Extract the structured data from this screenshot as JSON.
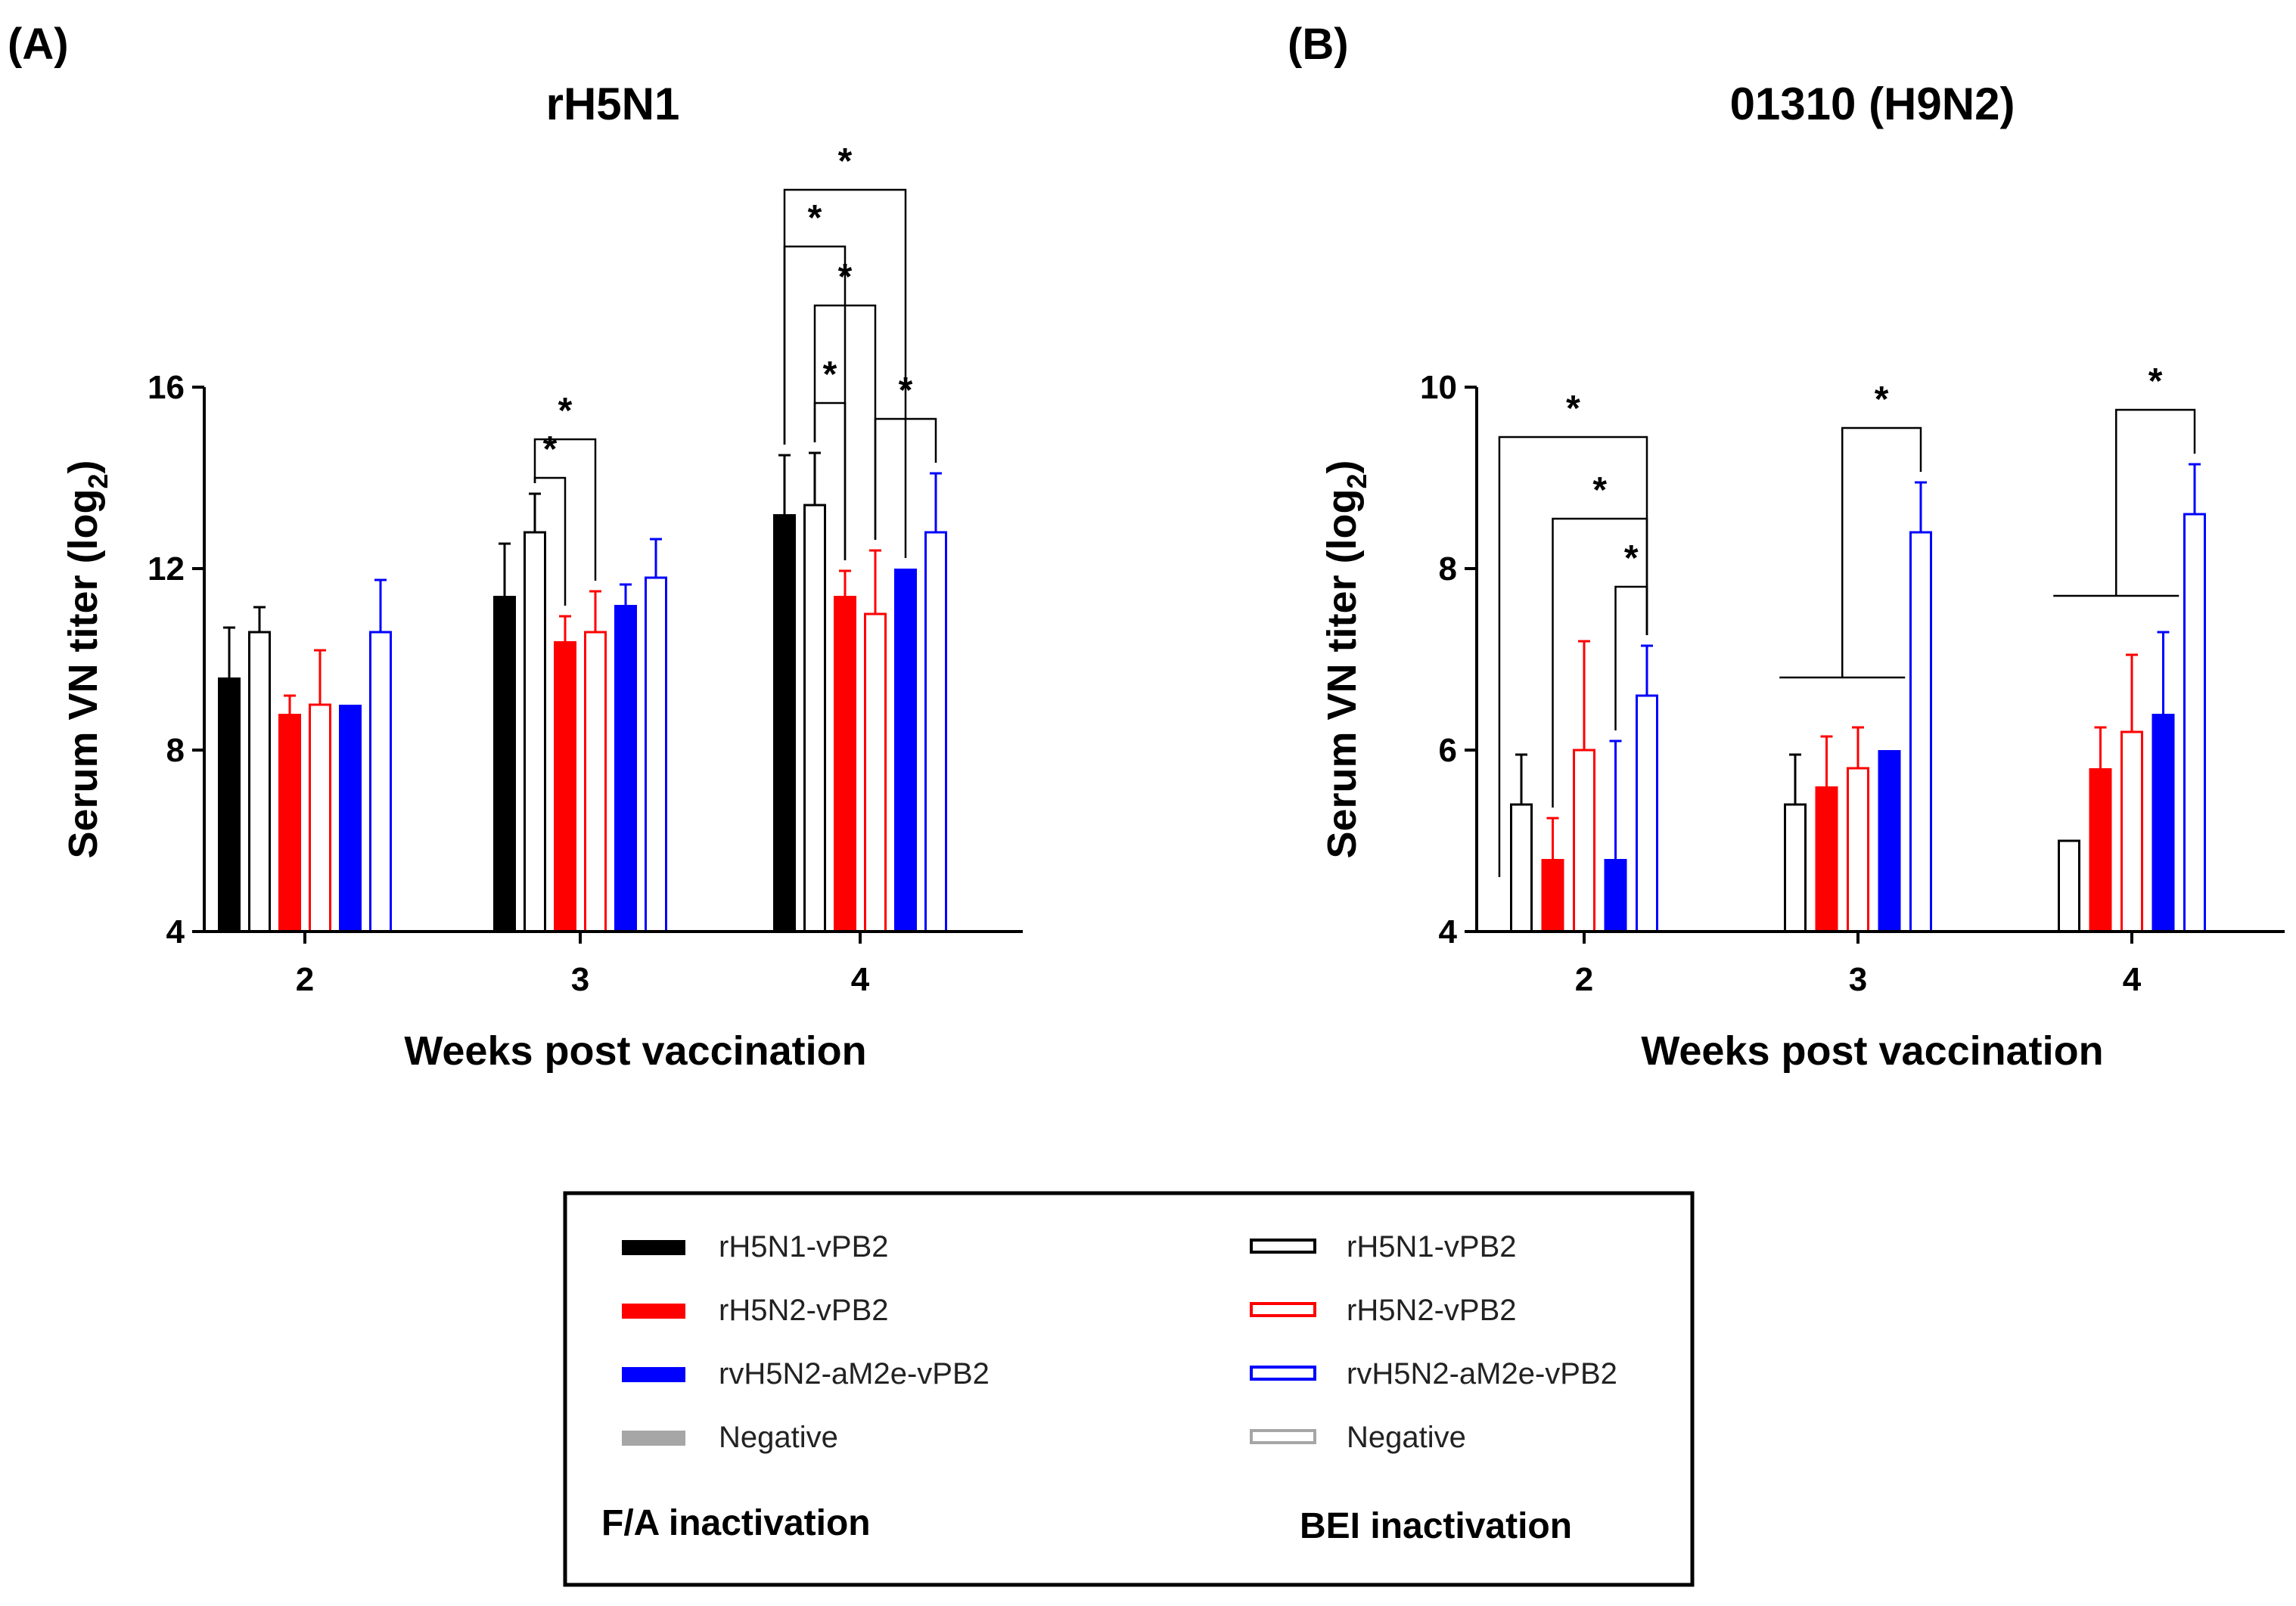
{
  "legend": {
    "items": [
      {
        "label": "rH5N1-vPB2",
        "fill": "#000000",
        "stroke": "#000000"
      },
      {
        "label": "rH5N2-vPB2",
        "fill": "#ff0000",
        "stroke": "#ff0000"
      },
      {
        "label": "rvH5N2-aM2e-vPB2",
        "fill": "#0000ff",
        "stroke": "#0000ff"
      },
      {
        "label": "Negative",
        "fill": "#a6a6a6",
        "stroke": "#a6a6a6"
      },
      {
        "label": "rH5N1-vPB2",
        "fill": "#ffffff",
        "stroke": "#000000"
      },
      {
        "label": "rH5N2-vPB2",
        "fill": "#ffffff",
        "stroke": "#ff0000"
      },
      {
        "label": "rvH5N2-aM2e-vPB2",
        "fill": "#ffffff",
        "stroke": "#0000ff"
      },
      {
        "label": "Negative",
        "fill": "#ffffff",
        "stroke": "#a6a6a6"
      }
    ],
    "fa_label": "F/A inactivation",
    "bei_label": "BEI inactivation"
  },
  "chart_data": [
    {
      "type": "bar",
      "panel": "(A)",
      "title": "rH5N1",
      "xlabel": "Weeks post vaccination",
      "ylabel": "Serum VN titer (log",
      "ylabel_sub": "2",
      "ylabel_end": ")",
      "ylim": [
        4,
        16
      ],
      "yticks": [
        "4",
        "8",
        "12",
        "16"
      ],
      "categories": [
        "2",
        "3",
        "4"
      ],
      "series": [
        {
          "name": "rH5N1-vPB2 (F/A)",
          "fill": "#000000",
          "stroke": "#000000",
          "values": [
            9.6,
            11.4,
            13.2
          ],
          "errors": [
            1.1,
            1.15,
            1.3
          ]
        },
        {
          "name": "rH5N1-vPB2 (BEI)",
          "fill": "#ffffff",
          "stroke": "#000000",
          "values": [
            10.6,
            12.8,
            13.4
          ],
          "errors": [
            0.55,
            0.85,
            1.15
          ]
        },
        {
          "name": "rH5N2-vPB2 (F/A)",
          "fill": "#ff0000",
          "stroke": "#ff0000",
          "values": [
            8.8,
            10.4,
            11.4
          ],
          "errors": [
            0.4,
            0.55,
            0.55
          ]
        },
        {
          "name": "rH5N2-vPB2 (BEI)",
          "fill": "#ffffff",
          "stroke": "#ff0000",
          "values": [
            9.0,
            10.6,
            11.0
          ],
          "errors": [
            1.2,
            0.9,
            1.4
          ]
        },
        {
          "name": "rvH5N2-aM2e-vPB2 (F/A)",
          "fill": "#0000ff",
          "stroke": "#0000ff",
          "values": [
            9.0,
            11.2,
            12.0
          ],
          "errors": [
            0,
            0.45,
            0
          ]
        },
        {
          "name": "rvH5N2-aM2e-vPB2 (BEI)",
          "fill": "#ffffff",
          "stroke": "#0000ff",
          "values": [
            10.6,
            11.8,
            12.8
          ],
          "errors": [
            1.15,
            0.85,
            1.3
          ]
        }
      ],
      "significance": [
        {
          "group": "3",
          "from": 1,
          "to": 3,
          "level": 14.85,
          "label": "*"
        },
        {
          "group": "3",
          "from": 1,
          "to": 2,
          "level": 14.0,
          "label": "*"
        },
        {
          "group": "4",
          "from": 0,
          "to": 4,
          "level": 20.35,
          "label": "*"
        },
        {
          "group": "4",
          "from": 0,
          "to": 2,
          "level": 19.1,
          "label": "*"
        },
        {
          "group": "4",
          "from": 1,
          "to": 3,
          "level": 17.8,
          "label": "*"
        },
        {
          "group": "4",
          "from": 1,
          "to": 2,
          "level": 15.65,
          "label": "*"
        },
        {
          "group": "4",
          "from": 3,
          "to": 5,
          "level": 15.3,
          "label": "*"
        }
      ]
    },
    {
      "type": "bar",
      "panel": "(B)",
      "title": "01310 (H9N2)",
      "xlabel": "Weeks post vaccination",
      "ylabel": "Serum VN titer (log",
      "ylabel_sub": "2",
      "ylabel_end": ")",
      "ylim": [
        4,
        10
      ],
      "yticks": [
        "4",
        "6",
        "8",
        "10"
      ],
      "categories": [
        "2",
        "3",
        "4"
      ],
      "series": [
        {
          "name": "rH5N1-vPB2 (BEI)",
          "fill": "#ffffff",
          "stroke": "#000000",
          "values": [
            5.4,
            5.4,
            5.0
          ],
          "errors": [
            0.55,
            0.55,
            0
          ]
        },
        {
          "name": "rH5N2-vPB2 (F/A)",
          "fill": "#ff0000",
          "stroke": "#ff0000",
          "values": [
            4.8,
            5.6,
            5.8
          ],
          "errors": [
            0.45,
            0.55,
            0.45
          ]
        },
        {
          "name": "rH5N2-vPB2 (BEI)",
          "fill": "#ffffff",
          "stroke": "#ff0000",
          "values": [
            6.0,
            5.8,
            6.2
          ],
          "errors": [
            1.2,
            0.45,
            0.85
          ]
        },
        {
          "name": "rvH5N2-aM2e-vPB2 (F/A)",
          "fill": "#0000ff",
          "stroke": "#0000ff",
          "values": [
            4.8,
            6.0,
            6.4
          ],
          "errors": [
            1.3,
            0,
            0.9
          ]
        },
        {
          "name": "rvH5N2-aM2e-vPB2 (BEI)",
          "fill": "#ffffff",
          "stroke": "#0000ff",
          "values": [
            6.6,
            8.4,
            8.6
          ],
          "errors": [
            0.55,
            0.55,
            0.55
          ]
        }
      ],
      "significance": [
        {
          "group": "2",
          "from": -0.7,
          "to": 4,
          "level": 9.45,
          "label": "*",
          "left_drop": 4.6
        },
        {
          "group": "2",
          "from": 1,
          "to": 4,
          "level": 8.55,
          "label": "*"
        },
        {
          "group": "2",
          "from": 3,
          "to": 4,
          "level": 7.8,
          "label": "*"
        },
        {
          "group": "3",
          "from": 1.5,
          "to": 4,
          "level": 9.55,
          "label": "*",
          "left_drop": 6.8,
          "hbar": [
            -0.5,
            3.5
          ]
        },
        {
          "group": "4",
          "from": 1.5,
          "to": 4,
          "level": 9.75,
          "label": "*",
          "left_drop": 7.7,
          "hbar": [
            -0.5,
            3.5
          ]
        }
      ]
    }
  ]
}
